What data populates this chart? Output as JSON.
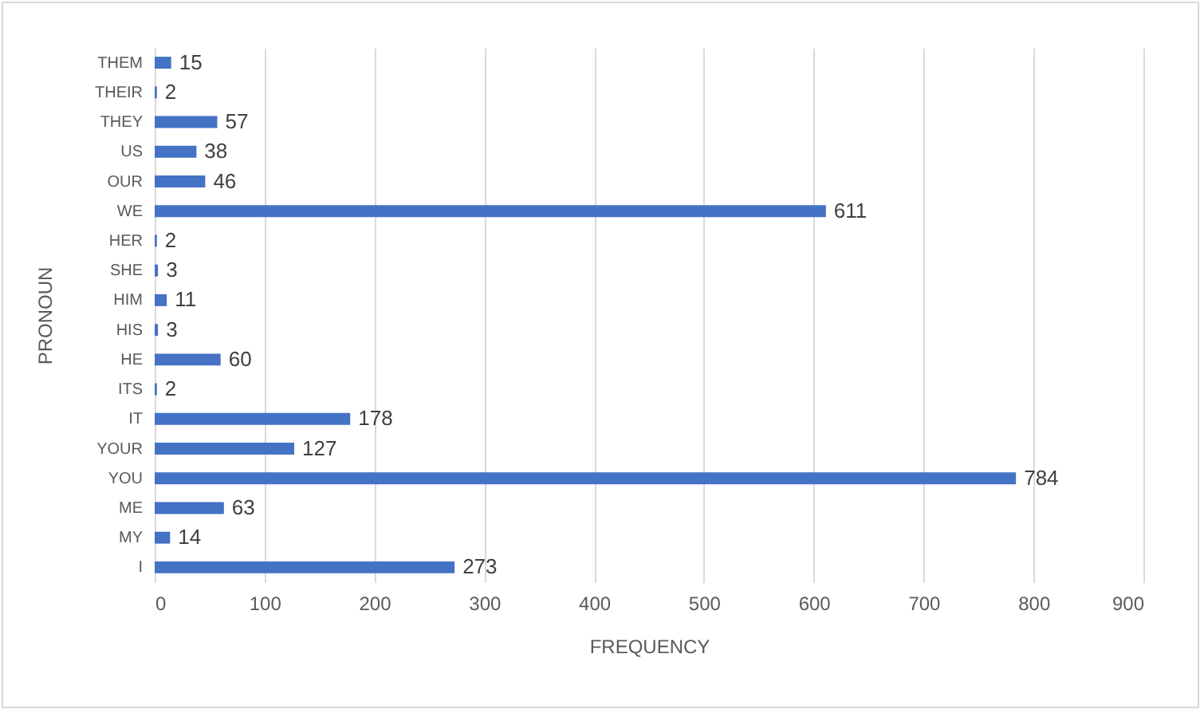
{
  "chart_data": {
    "type": "bar",
    "orientation": "horizontal",
    "xlabel": "FREQUENCY",
    "ylabel": "PRONOUN",
    "categories": [
      "THEM",
      "THEIR",
      "THEY",
      "US",
      "OUR",
      "WE",
      "HER",
      "SHE",
      "HIM",
      "HIS",
      "HE",
      "ITS",
      "IT",
      "YOUR",
      "YOU",
      "ME",
      "MY",
      "I"
    ],
    "values": [
      15,
      2,
      57,
      38,
      46,
      611,
      2,
      3,
      11,
      3,
      60,
      2,
      178,
      127,
      784,
      63,
      14,
      273
    ],
    "color": "#4472c4",
    "xlim": [
      0,
      900
    ],
    "xticks": [
      0,
      100,
      200,
      300,
      400,
      500,
      600,
      700,
      800,
      900
    ],
    "grid": "x",
    "data_labels": true
  }
}
